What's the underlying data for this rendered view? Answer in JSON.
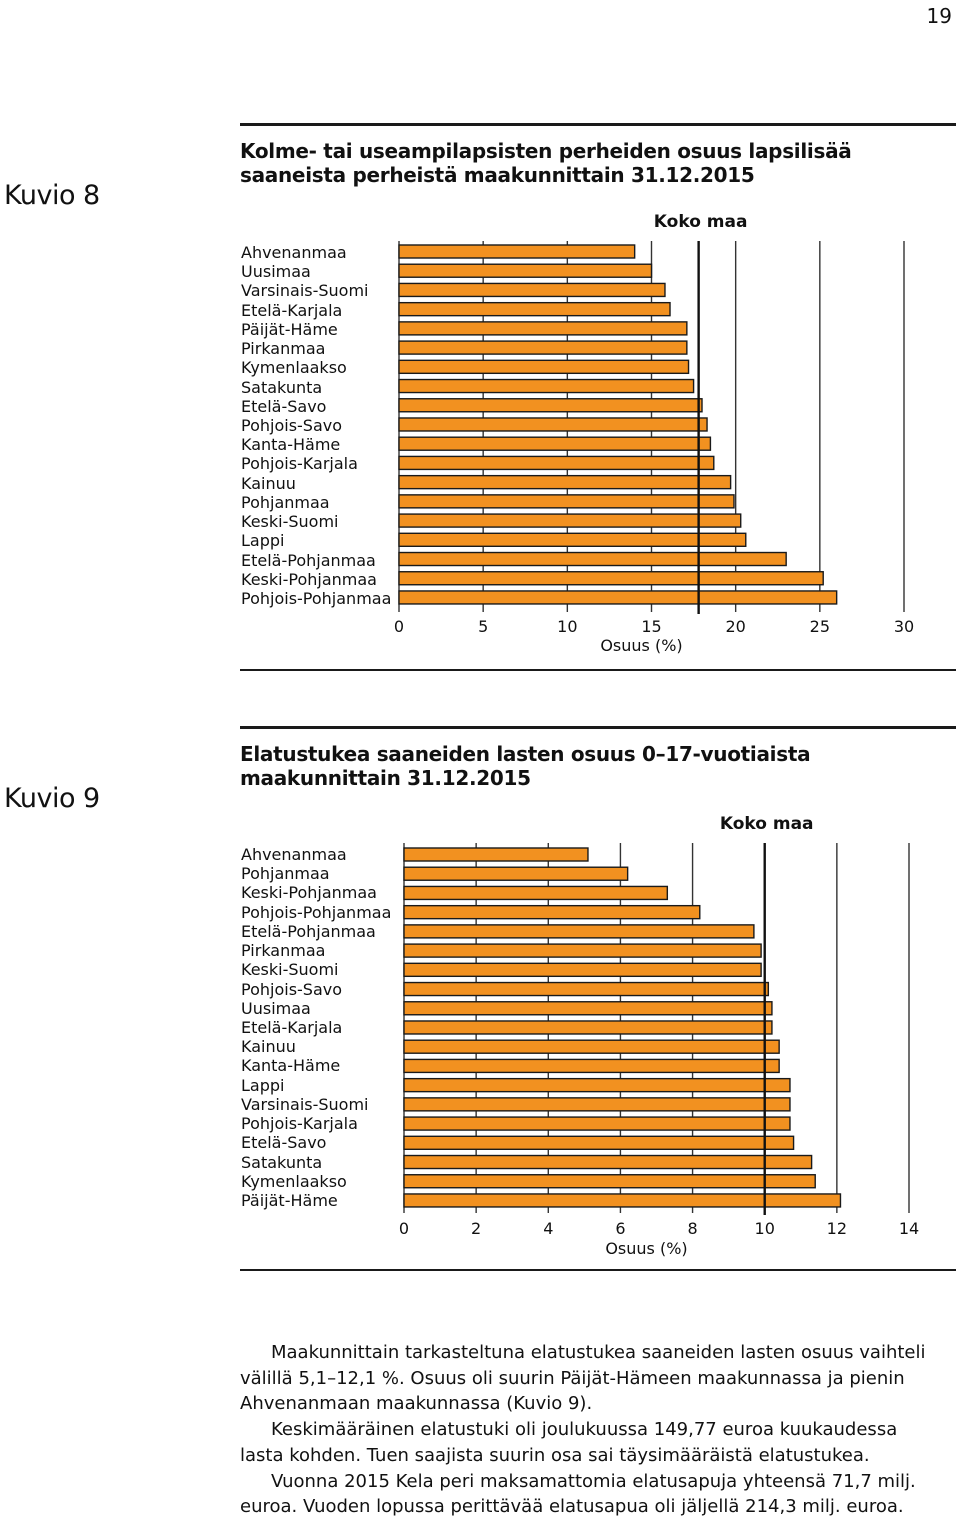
{
  "page_number": "19",
  "charts": [
    {
      "figure_label": "Kuvio 8",
      "title": "Kolme- tai useampilapsisten perheiden osuus lapsilisää saaneista perheistä maakunnittain 31.12.2015",
      "reference_label": "Koko maa"
    },
    {
      "figure_label": "Kuvio 9",
      "title": "Elatustukea saaneiden lasten osuus 0–17-vuotiaista maakunnittain 31.12.2015",
      "reference_label": "Koko maa"
    }
  ],
  "chart_data": [
    {
      "type": "bar",
      "orientation": "horizontal",
      "title": "Kolme- tai useampilapsisten perheiden osuus lapsilisää saaneista perheistä maakunnittain 31.12.2015",
      "xlabel": "Osuus (%)",
      "xlim": [
        0,
        30
      ],
      "xticks": [
        0,
        5,
        10,
        15,
        20,
        25,
        30
      ],
      "categories": [
        "Ahvenanmaa",
        "Uusimaa",
        "Varsinais-Suomi",
        "Etelä-Karjala",
        "Päijät-Häme",
        "Pirkanmaa",
        "Kymenlaakso",
        "Satakunta",
        "Etelä-Savo",
        "Pohjois-Savo",
        "Kanta-Häme",
        "Pohjois-Karjala",
        "Kainuu",
        "Pohjanmaa",
        "Keski-Suomi",
        "Lappi",
        "Etelä-Pohjanmaa",
        "Keski-Pohjanmaa",
        "Pohjois-Pohjanmaa"
      ],
      "values": [
        14.0,
        15.0,
        15.8,
        16.1,
        17.1,
        17.1,
        17.2,
        17.5,
        18.0,
        18.3,
        18.5,
        18.7,
        19.7,
        19.9,
        20.3,
        20.6,
        23.0,
        25.2,
        26.0
      ],
      "reference_line": {
        "label": "Koko maa",
        "value": 17.8
      },
      "bar_color": "#f29120"
    },
    {
      "type": "bar",
      "orientation": "horizontal",
      "title": "Elatustukea saaneiden lasten osuus 0–17-vuotiaista maakunnittain 31.12.2015",
      "xlabel": "Osuus (%)",
      "xlim": [
        0,
        14
      ],
      "xticks": [
        0,
        2,
        4,
        6,
        8,
        10,
        12,
        14
      ],
      "categories": [
        "Ahvenanmaa",
        "Pohjanmaa",
        "Keski-Pohjanmaa",
        "Pohjois-Pohjanmaa",
        "Etelä-Pohjanmaa",
        "Pirkanmaa",
        "Keski-Suomi",
        "Pohjois-Savo",
        "Uusimaa",
        "Etelä-Karjala",
        "Kainuu",
        "Kanta-Häme",
        "Lappi",
        "Varsinais-Suomi",
        "Pohjois-Karjala",
        "Etelä-Savo",
        "Satakunta",
        "Kymenlaakso",
        "Päijät-Häme"
      ],
      "values": [
        5.1,
        6.2,
        7.3,
        8.2,
        9.7,
        9.9,
        9.9,
        10.1,
        10.2,
        10.2,
        10.4,
        10.4,
        10.7,
        10.7,
        10.7,
        10.8,
        11.3,
        11.4,
        12.1
      ],
      "reference_line": {
        "label": "Koko maa",
        "value": 10.0
      },
      "bar_color": "#f29120"
    }
  ],
  "text": {
    "paragraphs": [
      "Maakunnittain tarkasteltuna elatustukea saaneiden lasten osuus vaihteli välillä 5,1–12,1 %. Osuus oli suurin Päijät-Hämeen maakunnassa ja pienin Ahvenanmaan maakunnassa (Kuvio 9).",
      "Keskimääräinen elatustuki oli joulukuussa 149,77 euroa kuukaudessa lasta kohden. Tuen saajista suurin osa sai täysimääräistä elatustukea.",
      "Vuonna 2015 Kela peri maksamattomia elatusapuja yhteensä 71,7 milj. euroa. Vuoden lopussa perittävää elatusapua oli jäljellä 214,3 milj. euroa."
    ]
  }
}
